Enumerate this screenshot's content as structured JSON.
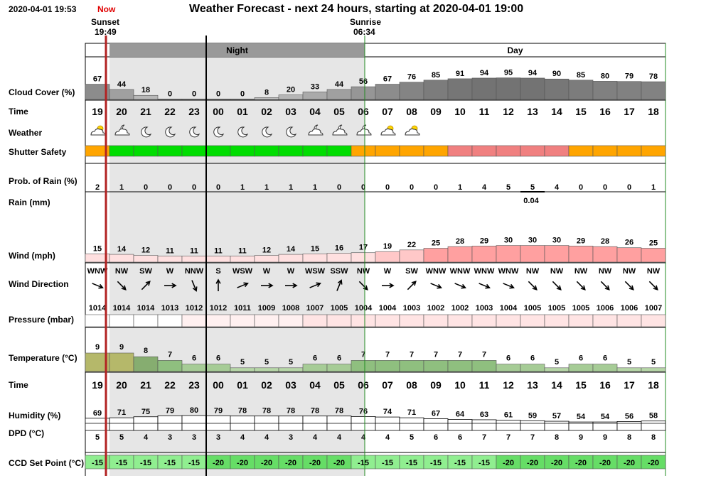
{
  "header": {
    "timestamp": "2020-04-01 19:53",
    "now_label": "Now",
    "title": "Weather Forecast - next 24 hours, starting at 2020-04-01 19:00",
    "sunset_label": "Sunset",
    "sunset_time": "19:49",
    "sunrise_label": "Sunrise",
    "sunrise_time": "06:34",
    "night_label": "Night",
    "day_label": "Day"
  },
  "rows": {
    "cloud_cover": "Cloud Cover (%)",
    "time": "Time",
    "weather": "Weather",
    "shutter": "Shutter Safety",
    "rain_prob": "Prob. of Rain (%)",
    "rain": "Rain (mm)",
    "wind": "Wind (mph)",
    "wind_dir": "Wind Direction",
    "pressure": "Pressure (mbar)",
    "temperature": "Temperature (°C)",
    "time2": "Time",
    "humidity": "Humidity (%)",
    "dpd": "DPD (°C)",
    "ccd": "CCD Set Point (°C)"
  },
  "colors": {
    "now_line": "#b22222",
    "night_bg": "#e6e6e6",
    "night_header": "#999999",
    "safe": "#00dd00",
    "caution": "#ffa500",
    "unsafe": "#f08080",
    "wind_fill": "#ffa0a0",
    "ccd_fill": "#90ee90"
  },
  "chart_data": {
    "type": "table",
    "hours": [
      "19",
      "20",
      "21",
      "22",
      "23",
      "00",
      "01",
      "02",
      "03",
      "04",
      "05",
      "06",
      "07",
      "08",
      "09",
      "10",
      "11",
      "12",
      "13",
      "14",
      "15",
      "16",
      "17",
      "18"
    ],
    "cloud_cover": [
      67,
      44,
      18,
      0,
      0,
      0,
      0,
      8,
      20,
      33,
      44,
      56,
      67,
      76,
      85,
      91,
      94,
      95,
      94,
      90,
      85,
      80,
      79,
      78
    ],
    "weather_icons": [
      "partly-cloudy-day",
      "partly-cloudy-night",
      "moon",
      "moon",
      "moon",
      "moon",
      "moon",
      "moon",
      "moon",
      "partly-cloudy-night",
      "partly-cloudy-night",
      "partly-cloudy-night",
      "partly-cloudy-day",
      "partly-cloudy-day",
      "",
      "",
      "",
      "",
      "",
      "",
      "",
      "",
      "",
      ""
    ],
    "shutter_safety": [
      "caution",
      "safe",
      "safe",
      "safe",
      "safe",
      "safe",
      "safe",
      "safe",
      "safe",
      "safe",
      "safe",
      "caution",
      "caution",
      "caution",
      "caution",
      "unsafe",
      "unsafe",
      "unsafe",
      "unsafe",
      "unsafe",
      "caution",
      "caution",
      "caution",
      "caution"
    ],
    "rain_prob": [
      2,
      1,
      0,
      0,
      0,
      0,
      1,
      1,
      1,
      1,
      0,
      0,
      0,
      0,
      0,
      1,
      4,
      5,
      5,
      4,
      0,
      0,
      0,
      1
    ],
    "rain_mm": [
      0,
      0,
      0,
      0,
      0,
      0,
      0,
      0,
      0,
      0,
      0,
      0,
      0,
      0,
      0,
      0,
      0,
      0,
      0.04,
      0,
      0,
      0,
      0,
      0
    ],
    "rain_label": "0.04",
    "wind_mph": [
      15,
      14,
      12,
      11,
      11,
      11,
      11,
      12,
      14,
      15,
      16,
      17,
      19,
      22,
      25,
      28,
      29,
      30,
      30,
      30,
      29,
      28,
      26,
      25
    ],
    "wind_dir": [
      "WNW",
      "NW",
      "SW",
      "W",
      "NNW",
      "S",
      "WSW",
      "W",
      "W",
      "WSW",
      "SSW",
      "NW",
      "W",
      "SW",
      "WNW",
      "WNW",
      "WNW",
      "WNW",
      "NW",
      "NW",
      "NW",
      "NW",
      "NW",
      "NW"
    ],
    "pressure": [
      1014,
      1014,
      1014,
      1013,
      1012,
      1012,
      1011,
      1009,
      1008,
      1007,
      1005,
      1004,
      1004,
      1003,
      1002,
      1002,
      1003,
      1004,
      1005,
      1005,
      1005,
      1006,
      1006,
      1007
    ],
    "temperature": [
      9,
      9,
      8,
      7,
      6,
      6,
      5,
      5,
      5,
      6,
      6,
      7,
      7,
      7,
      7,
      7,
      7,
      6,
      6,
      5,
      6,
      6,
      5,
      5
    ],
    "humidity": [
      69,
      71,
      75,
      79,
      80,
      79,
      78,
      78,
      78,
      78,
      78,
      76,
      74,
      71,
      67,
      64,
      63,
      61,
      59,
      57,
      54,
      54,
      56,
      58
    ],
    "dpd": [
      5,
      5,
      4,
      3,
      3,
      3,
      4,
      4,
      3,
      4,
      4,
      4,
      4,
      5,
      6,
      6,
      7,
      7,
      7,
      8,
      9,
      9,
      8,
      8
    ],
    "ccd_set_point": [
      -15,
      -15,
      -15,
      -15,
      -15,
      -20,
      -20,
      -20,
      -20,
      -20,
      -20,
      -15,
      -15,
      -15,
      -15,
      -15,
      -15,
      -20,
      -20,
      -20,
      -20,
      -20,
      -20,
      -20
    ]
  }
}
